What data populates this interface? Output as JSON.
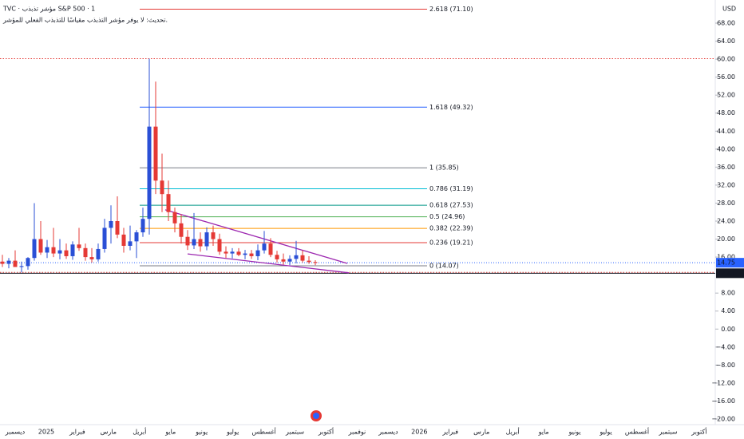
{
  "chart_data": {
    "type": "candlestick",
    "title": "TVC · مؤشر تذبذب S&P 500 · 1",
    "subtitle": "تحديث: لا يوفر مؤشر التذبذب مقياسًا للتذبذب الفعلي للمؤشر.",
    "currency": "USD",
    "up_color": "#2a4fd6",
    "down_color": "#e53935",
    "ylim": [
      -22,
      73
    ],
    "yticks": [
      {
        "value": 68,
        "label": "68.00"
      },
      {
        "value": 64,
        "label": "64.00"
      },
      {
        "value": 60,
        "label": "60.00"
      },
      {
        "value": 56,
        "label": "56.00"
      },
      {
        "value": 52,
        "label": "52.00"
      },
      {
        "value": 48,
        "label": "48.00"
      },
      {
        "value": 44,
        "label": "44.00"
      },
      {
        "value": 40,
        "label": "40.00"
      },
      {
        "value": 36,
        "label": "36.00"
      },
      {
        "value": 32,
        "label": "32.00"
      },
      {
        "value": 28,
        "label": "28.00"
      },
      {
        "value": 24,
        "label": "24.00"
      },
      {
        "value": 20,
        "label": "20.00"
      },
      {
        "value": 16,
        "label": "16.00"
      },
      {
        "value": 8,
        "label": "8.00"
      },
      {
        "value": 4,
        "label": "4.00"
      },
      {
        "value": 0,
        "label": "0.00"
      },
      {
        "value": -4,
        "label": "−4.00"
      },
      {
        "value": -8,
        "label": "−8.00"
      },
      {
        "value": -12,
        "label": "−12.00"
      },
      {
        "value": -16,
        "label": "−16.00"
      },
      {
        "value": -20,
        "label": "−20.00"
      }
    ],
    "x_labels": [
      "ديسمبر",
      "2025",
      "فبراير",
      "مارس",
      "أبريل",
      "مايو",
      "يونيو",
      "يوليو",
      "أغسطس",
      "سبتمبر",
      "أكتوبر",
      "نوفمبر",
      "ديسمبر",
      "2026",
      "فبراير",
      "مارس",
      "أبريل",
      "مايو",
      "يونيو",
      "يوليو",
      "أغسطس",
      "سبتمبر",
      "أكتوبر"
    ],
    "candles": [
      [
        15,
        16.5,
        13.8,
        14.5
      ],
      [
        14.5,
        15.8,
        13.5,
        15.2
      ],
      [
        15.2,
        17.5,
        14.2,
        13.8
      ],
      [
        13.8,
        15,
        12.6,
        14
      ],
      [
        14,
        16,
        13.2,
        15.8
      ],
      [
        15.8,
        28,
        15.2,
        20
      ],
      [
        20,
        24,
        16.5,
        17
      ],
      [
        17,
        19.8,
        15.8,
        18.2
      ],
      [
        18.2,
        22.5,
        16,
        16.8
      ],
      [
        16.8,
        20,
        15.5,
        17.5
      ],
      [
        17.5,
        19,
        15.6,
        16.2
      ],
      [
        16.2,
        19.5,
        15.4,
        18.8
      ],
      [
        18.8,
        22.5,
        17.4,
        18
      ],
      [
        18,
        19,
        15.2,
        16
      ],
      [
        16,
        18,
        14.8,
        15.5
      ],
      [
        15.5,
        19,
        15,
        17.8
      ],
      [
        17.8,
        24.5,
        17,
        22.5
      ],
      [
        22.5,
        27.5,
        19,
        24
      ],
      [
        24,
        29.5,
        20.2,
        21
      ],
      [
        21,
        22.5,
        17,
        18.5
      ],
      [
        18.5,
        23,
        17.5,
        19.5
      ],
      [
        19.5,
        22,
        15.8,
        21.5
      ],
      [
        21.5,
        27,
        20.5,
        24.5
      ],
      [
        24.5,
        60.1,
        21,
        45
      ],
      [
        45,
        55,
        30,
        33
      ],
      [
        33,
        39,
        26,
        30
      ],
      [
        30,
        33,
        24,
        26
      ],
      [
        26,
        27,
        21.5,
        23.5
      ],
      [
        23.5,
        25.5,
        19,
        20.5
      ],
      [
        20.5,
        22,
        17.6,
        18.6
      ],
      [
        18.6,
        25.8,
        17.8,
        20
      ],
      [
        20,
        21.5,
        17.2,
        18.4
      ],
      [
        18.4,
        22.6,
        17.5,
        21.5
      ],
      [
        21.5,
        23,
        18.5,
        20
      ],
      [
        20,
        21.2,
        16.5,
        17.2
      ],
      [
        17.2,
        18.4,
        15.8,
        16.8
      ],
      [
        16.8,
        18,
        15.7,
        17.2
      ],
      [
        17.2,
        18,
        16.2,
        16.5
      ],
      [
        16.5,
        17.6,
        15.5,
        16.8
      ],
      [
        16.8,
        17.6,
        15.6,
        16.2
      ],
      [
        16.2,
        18.8,
        15.3,
        17.5
      ],
      [
        17.5,
        21.8,
        16.8,
        19
      ],
      [
        19,
        20.2,
        16,
        16.5
      ],
      [
        16.5,
        17.4,
        14.8,
        15.5
      ],
      [
        15.5,
        16.8,
        14.3,
        15
      ],
      [
        15,
        16.4,
        14.2,
        15.6
      ],
      [
        15.6,
        19.6,
        14.6,
        16.4
      ],
      [
        16.4,
        17.5,
        14.8,
        15.2
      ],
      [
        15.2,
        16.2,
        14.5,
        14.9
      ],
      [
        14.9,
        15.3,
        14.2,
        14.75
      ]
    ],
    "fib_levels": [
      {
        "label": "2.618 (71.10)",
        "value": 71.1,
        "color": "#e53935"
      },
      {
        "label": "1.618 (49.32)",
        "value": 49.32,
        "color": "#2962ff"
      },
      {
        "label": "1 (35.85)",
        "value": 35.85,
        "color": "#787b86"
      },
      {
        "label": "0.786 (31.19)",
        "value": 31.19,
        "color": "#00bcd4"
      },
      {
        "label": "0.618 (27.53)",
        "value": 27.53,
        "color": "#009688"
      },
      {
        "label": "0.5 (24.96)",
        "value": 24.96,
        "color": "#4caf50"
      },
      {
        "label": "0.382 (22.39)",
        "value": 22.39,
        "color": "#ff9800"
      },
      {
        "label": "0.236 (19.21)",
        "value": 19.21,
        "color": "#e53935"
      },
      {
        "label": "0 (14.07)",
        "value": 14.07,
        "color": "#787b86"
      }
    ],
    "trendlines": [
      {
        "color": "#9c27b0",
        "points": [
          [
            25.5,
            26.5
          ],
          [
            54,
            14.6
          ]
        ]
      },
      {
        "color": "#9c27b0",
        "points": [
          [
            29,
            16.7
          ],
          [
            54.25,
            12.5
          ]
        ]
      }
    ],
    "last_price": 14.75,
    "low_price": 12.41
  }
}
